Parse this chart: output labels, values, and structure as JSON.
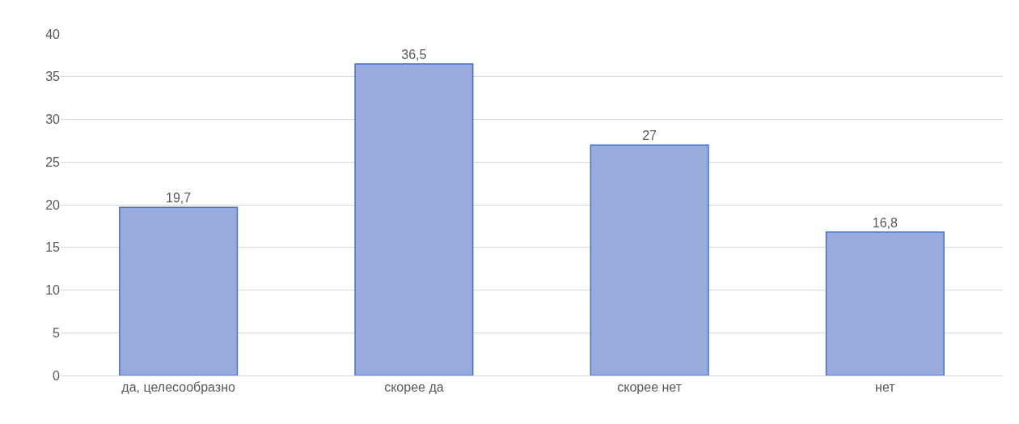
{
  "chart_data": {
    "type": "bar",
    "categories": [
      "да, целесообразно",
      "скорее да",
      "скорее нет",
      "нет"
    ],
    "values": [
      19.7,
      36.5,
      27,
      16.8
    ],
    "value_labels": [
      "19,7",
      "36,5",
      "27",
      "16,8"
    ],
    "color": "#99abdc",
    "ylim": [
      0,
      40
    ],
    "yticks": [
      0,
      5,
      10,
      15,
      20,
      25,
      30,
      35,
      40
    ],
    "grid": "y",
    "legend": false
  }
}
